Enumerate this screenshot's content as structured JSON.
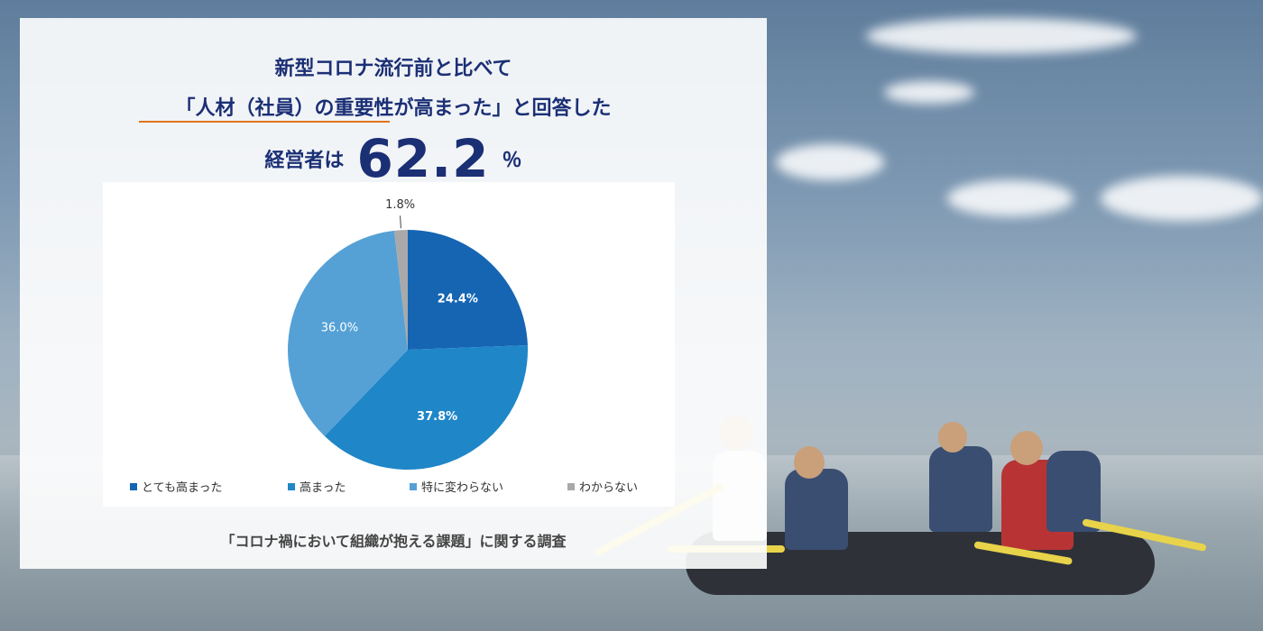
{
  "headline": {
    "line1": "新型コロナ流行前と比べて",
    "line2": "「人材（社員）の重要性が高まった」と回答した",
    "line3_lead": "経営者は",
    "line3_value": "62.2",
    "line3_unit": "％"
  },
  "footer": "「コロナ禍において組織が抱える課題」に関する調査",
  "colors": {
    "title": "#1b2f75",
    "underline": "#e0721e"
  },
  "chart_data": {
    "type": "pie",
    "slices": [
      {
        "label": "とても高まった",
        "value": 24.4,
        "display": "24.4%",
        "color": "#1565b3"
      },
      {
        "label": "高まった",
        "value": 37.8,
        "display": "37.8%",
        "color": "#1f86c8"
      },
      {
        "label": "特に変わらない",
        "value": 36.0,
        "display": "36.0%",
        "color": "#55a1d6"
      },
      {
        "label": "わからない",
        "value": 1.8,
        "display": "1.8%",
        "color": "#a9a9a9"
      }
    ],
    "legend_position": "bottom"
  }
}
